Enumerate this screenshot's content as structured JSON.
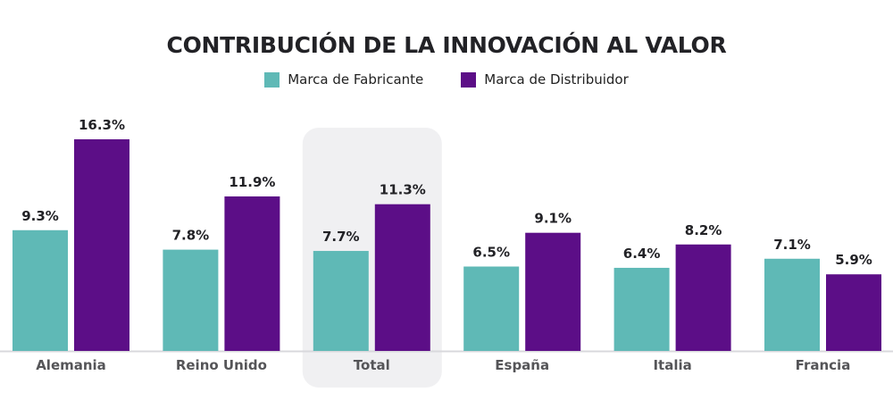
{
  "chart_data": {
    "type": "bar",
    "title": "CONTRIBUCIÓN DE LA INNOVACIÓN AL VALOR",
    "categories": [
      "Alemania",
      "Reino Unido",
      "Total",
      "España",
      "Italia",
      "Francia"
    ],
    "highlighted_category": "Total",
    "series": [
      {
        "name": "Marca de Fabricante",
        "color": "#5fb9b6",
        "values": [
          9.3,
          7.8,
          7.7,
          6.5,
          6.4,
          7.1
        ],
        "labels": [
          "9.3%",
          "7.8%",
          "7.7%",
          "6.5%",
          "6.4%",
          "7.1%"
        ]
      },
      {
        "name": "Marca de Distribuidor",
        "color": "#5c0e87",
        "values": [
          16.3,
          11.9,
          11.3,
          9.1,
          8.2,
          5.9
        ],
        "labels": [
          "16.3%",
          "11.9%",
          "11.3%",
          "9.1%",
          "8.2%",
          "5.9%"
        ]
      }
    ],
    "ylim": [
      0,
      16.3
    ],
    "grid": false,
    "legend_position": "top-center"
  }
}
